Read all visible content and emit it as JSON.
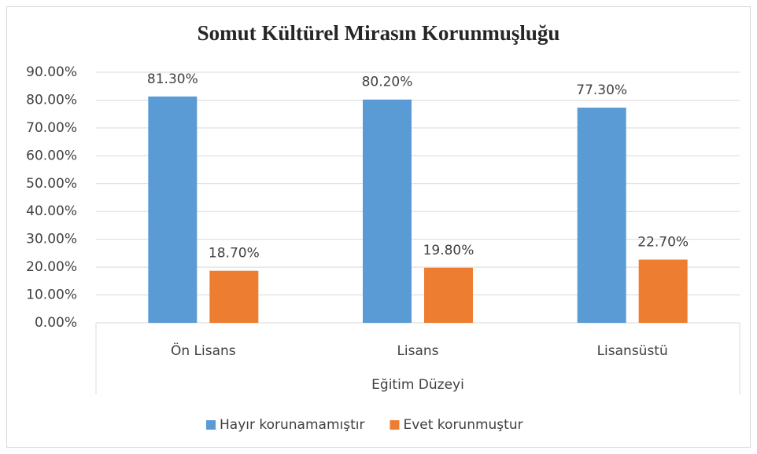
{
  "chart_data": {
    "type": "bar",
    "title": "Somut Kültürel Mirasın Korunmuşluğu",
    "x_label": "Eğitim Düzeyi",
    "categories": [
      "Ön Lisans",
      "Lisans",
      "Lisansüstü"
    ],
    "series": [
      {
        "name": "Hayır korunamamıştır",
        "color": "#5b9bd5",
        "values": [
          81.3,
          80.2,
          77.3
        ],
        "value_labels": [
          "81.30%",
          "80.20%",
          "77.30%"
        ]
      },
      {
        "name": "Evet korunmuştur",
        "color": "#ed7d31",
        "values": [
          18.7,
          19.8,
          22.7
        ],
        "value_labels": [
          "18.70%",
          "19.80%",
          "22.70%"
        ]
      }
    ],
    "ylim": [
      0,
      90
    ],
    "yticks": [
      {
        "value": 0,
        "label": "0.00%"
      },
      {
        "value": 10,
        "label": "10.00%"
      },
      {
        "value": 20,
        "label": "20.00%"
      },
      {
        "value": 30,
        "label": "30.00%"
      },
      {
        "value": 40,
        "label": "40.00%"
      },
      {
        "value": 50,
        "label": "50.00%"
      },
      {
        "value": 60,
        "label": "60.00%"
      },
      {
        "value": 70,
        "label": "70.00%"
      },
      {
        "value": 80,
        "label": "80.00%"
      },
      {
        "value": 90,
        "label": "90.00%"
      }
    ],
    "grid": true,
    "legend": "bottom"
  }
}
